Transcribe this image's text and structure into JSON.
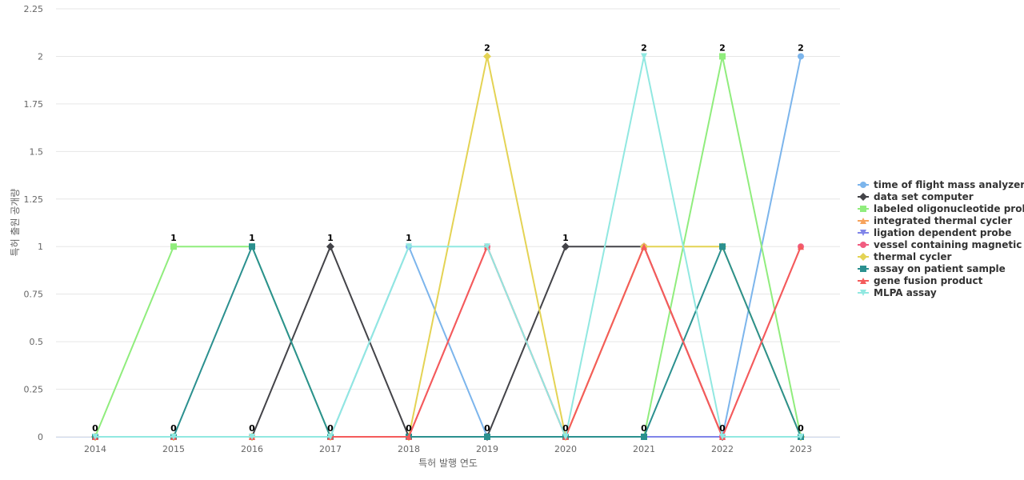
{
  "chart_data": {
    "type": "line",
    "title": "",
    "xlabel": "특허 발행 연도",
    "ylabel": "특허 출원 공개량",
    "ylim": [
      0,
      2.25
    ],
    "yticks": [
      "0",
      "0.25",
      "0.5",
      "0.75",
      "1",
      "1.25",
      "1.5",
      "1.75",
      "2",
      "2.25"
    ],
    "categories": [
      "2014",
      "2015",
      "2016",
      "2017",
      "2018",
      "2019",
      "2020",
      "2021",
      "2022",
      "2023"
    ],
    "grid": true,
    "legend_position": "right",
    "top_labels": [
      "0",
      "1",
      "1",
      "1",
      "1",
      "2",
      "1",
      "2",
      "2",
      "2"
    ],
    "bottom_labels": [
      "",
      "0",
      "0",
      "0",
      "0",
      "0",
      "0",
      "0",
      "0",
      "0"
    ],
    "series": [
      {
        "name": "time of flight mass analyzer",
        "color": "#7cb5ec",
        "marker": "circle",
        "values": [
          0,
          0,
          0,
          0,
          1,
          0,
          0,
          0,
          0,
          2
        ]
      },
      {
        "name": "data set computer",
        "color": "#434348",
        "marker": "diamond",
        "values": [
          0,
          0,
          0,
          1,
          0,
          0,
          1,
          1,
          0,
          0
        ]
      },
      {
        "name": "labeled oligonucleotide probe",
        "color": "#90ed7d",
        "marker": "square",
        "values": [
          0,
          1,
          1,
          0,
          0,
          0,
          0,
          0,
          2,
          0
        ]
      },
      {
        "name": "integrated thermal cycler",
        "color": "#f7a35c",
        "marker": "triangle",
        "values": [
          0,
          0,
          0,
          0,
          0,
          0,
          0,
          1,
          0,
          0
        ]
      },
      {
        "name": "ligation dependent probe",
        "color": "#8085e9",
        "marker": "triangle-down",
        "values": [
          0,
          0,
          0,
          0,
          0,
          0,
          0,
          0,
          0,
          0
        ]
      },
      {
        "name": "vessel containing magnetic ...",
        "color": "#f15c80",
        "marker": "circle",
        "values": [
          0,
          0,
          0,
          0,
          0,
          1,
          0,
          1,
          0,
          1
        ]
      },
      {
        "name": "thermal cycler",
        "color": "#e4d354",
        "marker": "diamond",
        "values": [
          0,
          0,
          0,
          0,
          0,
          2,
          0,
          1,
          1,
          0
        ]
      },
      {
        "name": "assay on patient sample",
        "color": "#2b908f",
        "marker": "square",
        "values": [
          0,
          0,
          1,
          0,
          0,
          0,
          0,
          0,
          1,
          0
        ]
      },
      {
        "name": "gene fusion product",
        "color": "#f45b5b",
        "marker": "triangle",
        "values": [
          0,
          0,
          0,
          0,
          0,
          1,
          0,
          1,
          0,
          1
        ]
      },
      {
        "name": "MLPA assay",
        "color": "#91e8e1",
        "marker": "triangle-down",
        "values": [
          0,
          0,
          0,
          0,
          1,
          1,
          0,
          2,
          0,
          0
        ]
      }
    ]
  }
}
